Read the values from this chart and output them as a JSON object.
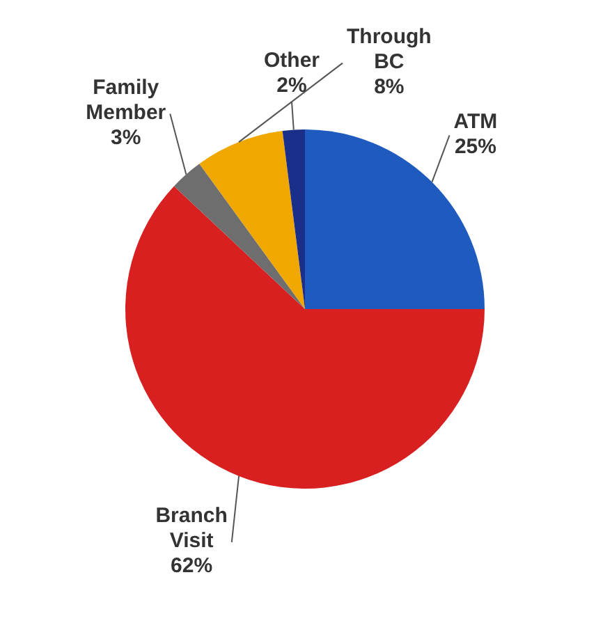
{
  "chart_data": {
    "type": "pie",
    "categories": [
      "ATM",
      "Branch Visit",
      "Family Member",
      "Through BC",
      "Other"
    ],
    "values": [
      25,
      62,
      3,
      8,
      2
    ],
    "value_labels": [
      "25%",
      "62%",
      "3%",
      "8%",
      "2%"
    ],
    "colors": [
      "#1f5bbf",
      "#d92020",
      "#6e6e6e",
      "#f0a800",
      "#1a2f8a"
    ]
  }
}
